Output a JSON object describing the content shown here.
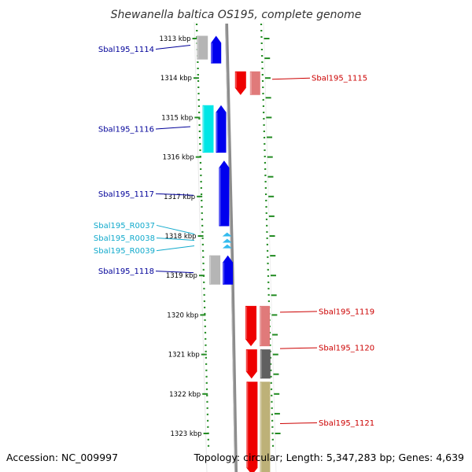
{
  "title": "Shewanella baltica OS195, complete genome",
  "footer": {
    "accession": "Accession: NC_009997",
    "topology": "Topology: circular; Length: 5,347,283 bp; Genes: 4,639"
  },
  "colors": {
    "blue": "#0000ee",
    "gray": "#b5b5b5",
    "cyan": "#00e6e6",
    "light_blue": "#33bbee",
    "red": "#ee0000",
    "salmon": "#e07a7a",
    "dark_gray": "#606060",
    "khaki": "#bdb178",
    "orange": "#ff9900",
    "tick_green": "#228B22",
    "label_blue": "#000099",
    "label_cyan": "#11aacc",
    "label_red": "#cc0000"
  },
  "scale": {
    "unit": "kbp",
    "ticks": [
      {
        "kbp": 1313,
        "label": "1313 kbp"
      },
      {
        "kbp": 1314,
        "label": "1314 kbp"
      },
      {
        "kbp": 1315,
        "label": "1315 kbp"
      },
      {
        "kbp": 1316,
        "label": "1316 kbp"
      },
      {
        "kbp": 1317,
        "label": "1317 kbp"
      },
      {
        "kbp": 1318,
        "label": "1318 kbp"
      },
      {
        "kbp": 1319,
        "label": "1319 kbp"
      },
      {
        "kbp": 1320,
        "label": "1320 kbp"
      },
      {
        "kbp": 1321,
        "label": "1321 kbp"
      },
      {
        "kbp": 1322,
        "label": "1322 kbp"
      },
      {
        "kbp": 1323,
        "label": "1323 kbp"
      }
    ]
  },
  "features": [
    {
      "lane": "gray",
      "color": "gray",
      "start": 1312.93,
      "end": 1313.53
    },
    {
      "lane": "fwd",
      "color": "blue",
      "start": 1312.93,
      "end": 1313.63
    },
    {
      "lane": "rev",
      "color": "red",
      "start": 1313.83,
      "end": 1314.43
    },
    {
      "lane": "gray",
      "color": "salmon",
      "start": 1313.83,
      "end": 1314.43
    },
    {
      "lane": "gray",
      "color": "cyan",
      "start": 1314.69,
      "end": 1315.89
    },
    {
      "lane": "fwd",
      "color": "blue",
      "start": 1314.69,
      "end": 1315.89
    },
    {
      "lane": "fwd",
      "color": "blue",
      "start": 1316.09,
      "end": 1317.75
    },
    {
      "lane": "fwd",
      "color": "light_blue",
      "start": 1317.91,
      "end": 1318.01
    },
    {
      "lane": "fwd",
      "color": "light_blue",
      "start": 1318.07,
      "end": 1318.17
    },
    {
      "lane": "fwd",
      "color": "light_blue",
      "start": 1318.21,
      "end": 1318.31
    },
    {
      "lane": "gray",
      "color": "gray",
      "start": 1318.49,
      "end": 1319.23
    },
    {
      "lane": "fwd",
      "color": "blue",
      "start": 1318.49,
      "end": 1319.23
    },
    {
      "lane": "rev",
      "color": "red",
      "start": 1319.77,
      "end": 1320.79
    },
    {
      "lane": "gray",
      "color": "salmon",
      "start": 1319.77,
      "end": 1320.79
    },
    {
      "lane": "rev",
      "color": "red",
      "start": 1320.87,
      "end": 1321.61
    },
    {
      "lane": "gray",
      "color": "dark_gray",
      "start": 1320.87,
      "end": 1321.61
    },
    {
      "lane": "rev",
      "color": "red",
      "start": 1321.69,
      "end": 1324.05
    },
    {
      "lane": "gray",
      "color": "khaki",
      "start": 1321.69,
      "end": 1324.05
    }
  ],
  "labels": [
    {
      "text": "Sbal195_1114",
      "side": "left",
      "color": "label_blue",
      "text_kbp": 1313.27,
      "line_kbp": 1313.17
    },
    {
      "text": "Sbal195_1115",
      "side": "right",
      "color": "label_red",
      "text_kbp": 1314.0,
      "line_kbp": 1314.03
    },
    {
      "text": "Sbal195_1116",
      "side": "left",
      "color": "label_blue",
      "text_kbp": 1315.29,
      "line_kbp": 1315.23
    },
    {
      "text": "Sbal195_1117",
      "side": "left",
      "color": "label_blue",
      "text_kbp": 1316.93,
      "line_kbp": 1316.97
    },
    {
      "text": "Sbal195_R0037",
      "side": "left",
      "color": "label_cyan",
      "text_kbp": 1317.73,
      "line_kbp": 1317.95
    },
    {
      "text": "Sbal195_R0038",
      "side": "left",
      "color": "label_cyan",
      "text_kbp": 1318.05,
      "line_kbp": 1318.11
    },
    {
      "text": "Sbal195_R0039",
      "side": "left",
      "color": "label_cyan",
      "text_kbp": 1318.37,
      "line_kbp": 1318.25
    },
    {
      "text": "Sbal195_1118",
      "side": "left",
      "color": "label_blue",
      "text_kbp": 1318.89,
      "line_kbp": 1318.93
    },
    {
      "text": "Sbal195_1119",
      "side": "right",
      "color": "label_red",
      "text_kbp": 1319.91,
      "line_kbp": 1319.93
    },
    {
      "text": "Sbal195_1120",
      "side": "right",
      "color": "label_red",
      "text_kbp": 1320.83,
      "line_kbp": 1320.85
    },
    {
      "text": "Sbal195_1121",
      "side": "right",
      "color": "label_red",
      "text_kbp": 1322.73,
      "line_kbp": 1322.75
    }
  ]
}
